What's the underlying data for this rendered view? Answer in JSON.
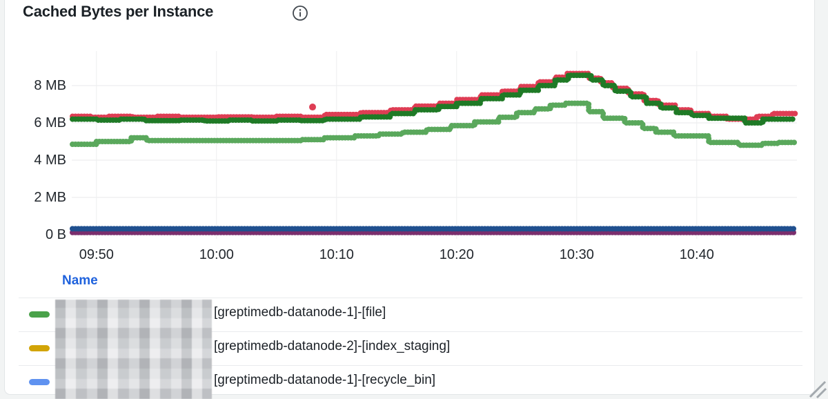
{
  "panel": {
    "title": "Cached Bytes per Instance",
    "info_icon": "info-circle-icon"
  },
  "legend": {
    "header": "Name",
    "header_color": "#1f62dd",
    "rows": [
      {
        "marker_color": "#4aa24a",
        "redacted_prefix": true,
        "label": "[greptimedb-datanode-1]-[file]"
      },
      {
        "marker_color": "#d2a406",
        "redacted_prefix": true,
        "label": "[greptimedb-datanode-2]-[index_staging]"
      },
      {
        "marker_color": "#5f92f0",
        "redacted_prefix": true,
        "label": "[greptimedb-datanode-1]-[recycle_bin]"
      }
    ]
  },
  "chart_data": {
    "type": "line",
    "style": "dotted-step",
    "title": "Cached Bytes per Instance",
    "xlabel": "",
    "ylabel": "",
    "y_unit": "MB",
    "ylim": [
      0,
      9.85
    ],
    "x_domain_minutes_after_0900": [
      48,
      108.2
    ],
    "grid": true,
    "legend_position": "bottom-table",
    "y_ticks": [
      {
        "v": 0,
        "label": "0 B"
      },
      {
        "v": 2,
        "label": "2 MB"
      },
      {
        "v": 4,
        "label": "4 MB"
      },
      {
        "v": 6,
        "label": "6 MB"
      },
      {
        "v": 8,
        "label": "8 MB"
      }
    ],
    "x_ticks": [
      {
        "t": 50,
        "label": "09:50"
      },
      {
        "t": 60,
        "label": "10:00"
      },
      {
        "t": 70,
        "label": "10:10"
      },
      {
        "t": 80,
        "label": "10:20"
      },
      {
        "t": 90,
        "label": "10:30"
      },
      {
        "t": 100,
        "label": "10:40"
      }
    ],
    "series": [
      {
        "name": "purple",
        "color": "#7a2e6d",
        "width": 8,
        "points": [
          [
            48,
            0.12
          ],
          [
            108.2,
            0.12
          ]
        ]
      },
      {
        "name": "navy",
        "color": "#20508f",
        "width": 8,
        "points": [
          [
            48,
            0.32
          ],
          [
            108.2,
            0.32
          ]
        ]
      },
      {
        "name": "light-green",
        "color": "#5aa85c",
        "width": 8,
        "points": [
          [
            48,
            4.85
          ],
          [
            50,
            5.0
          ],
          [
            52.9,
            5.2
          ],
          [
            54.2,
            5.05
          ],
          [
            65,
            5.05
          ],
          [
            67,
            5.1
          ],
          [
            69,
            5.2
          ],
          [
            71.5,
            5.3
          ],
          [
            73.5,
            5.4
          ],
          [
            75.5,
            5.5
          ],
          [
            77.5,
            5.65
          ],
          [
            79.5,
            5.85
          ],
          [
            81.5,
            6.05
          ],
          [
            83.5,
            6.3
          ],
          [
            85,
            6.55
          ],
          [
            86.5,
            6.75
          ],
          [
            87.8,
            6.95
          ],
          [
            89,
            7.05
          ],
          [
            91,
            6.6
          ],
          [
            92.2,
            6.25
          ],
          [
            94,
            6.0
          ],
          [
            95.5,
            5.7
          ],
          [
            96.6,
            5.5
          ],
          [
            98.1,
            5.3
          ],
          [
            101,
            4.95
          ],
          [
            103.5,
            4.8
          ],
          [
            105.5,
            4.9
          ],
          [
            106.8,
            4.95
          ],
          [
            108.2,
            4.95
          ]
        ]
      },
      {
        "name": "red",
        "color": "#de3d54",
        "width": 8,
        "points": [
          [
            48,
            6.35
          ],
          [
            49.5,
            6.3
          ],
          [
            51,
            6.35
          ],
          [
            53,
            6.3
          ],
          [
            55,
            6.35
          ],
          [
            57,
            6.3
          ],
          [
            60,
            6.32
          ],
          [
            63,
            6.3
          ],
          [
            65,
            6.35
          ],
          [
            67,
            6.3
          ],
          [
            69,
            6.45
          ],
          [
            72,
            6.55
          ],
          [
            74.5,
            6.7
          ],
          [
            76.5,
            6.9
          ],
          [
            78.5,
            7.05
          ],
          [
            80,
            7.25
          ],
          [
            82,
            7.5
          ],
          [
            83.8,
            7.7
          ],
          [
            85.3,
            7.95
          ],
          [
            86.8,
            8.2
          ],
          [
            88.2,
            8.45
          ],
          [
            89.2,
            8.65
          ],
          [
            91,
            8.4
          ],
          [
            92,
            8.15
          ],
          [
            93,
            7.85
          ],
          [
            94.3,
            7.55
          ],
          [
            95.6,
            7.2
          ],
          [
            96.8,
            6.95
          ],
          [
            98.2,
            6.7
          ],
          [
            99.5,
            6.5
          ],
          [
            101,
            6.35
          ],
          [
            102.5,
            6.2
          ],
          [
            105,
            6.35
          ],
          [
            106.3,
            6.5
          ],
          [
            108.2,
            6.5
          ]
        ]
      },
      {
        "name": "dark-green",
        "color": "#1f7a26",
        "width": 8,
        "points": [
          [
            48,
            6.2
          ],
          [
            50,
            6.15
          ],
          [
            52,
            6.2
          ],
          [
            54,
            6.12
          ],
          [
            57,
            6.15
          ],
          [
            59,
            6.1
          ],
          [
            61,
            6.15
          ],
          [
            63,
            6.1
          ],
          [
            65,
            6.15
          ],
          [
            67,
            6.12
          ],
          [
            69,
            6.2
          ],
          [
            72,
            6.32
          ],
          [
            74.5,
            6.5
          ],
          [
            76.5,
            6.7
          ],
          [
            78.5,
            6.88
          ],
          [
            80,
            7.05
          ],
          [
            82,
            7.3
          ],
          [
            83.8,
            7.5
          ],
          [
            85.3,
            7.75
          ],
          [
            86.8,
            8.0
          ],
          [
            88.2,
            8.3
          ],
          [
            89.3,
            8.55
          ],
          [
            91.2,
            8.3
          ],
          [
            92.2,
            8.0
          ],
          [
            93.2,
            7.7
          ],
          [
            94.5,
            7.4
          ],
          [
            95.8,
            7.05
          ],
          [
            97,
            6.8
          ],
          [
            98.3,
            6.55
          ],
          [
            99.6,
            6.4
          ],
          [
            101,
            6.25
          ],
          [
            104,
            6.0
          ],
          [
            105.5,
            6.2
          ],
          [
            108.2,
            6.2
          ]
        ]
      }
    ],
    "outliers": [
      {
        "series": "red",
        "color": "#de3d54",
        "t": 68,
        "v": 6.85,
        "r": 5
      }
    ]
  }
}
